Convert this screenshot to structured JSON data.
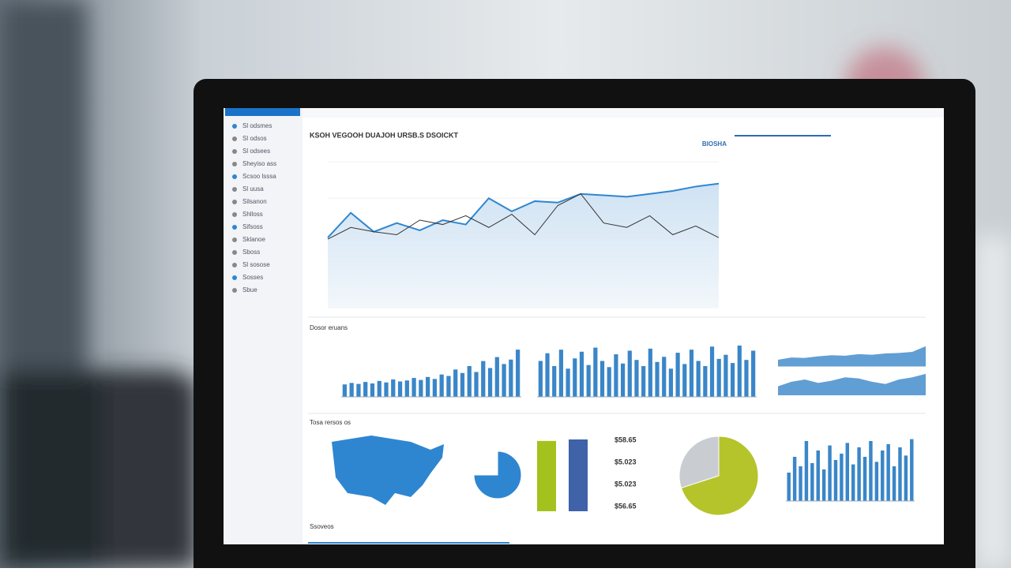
{
  "header": {
    "title": "KSOH VEGOOH DUAJOH URSB.S DSOICKT",
    "brand": "BIOSHA"
  },
  "sidebar": {
    "items": [
      "Sl odsmes",
      "Sl odsos",
      "Sl odsees",
      "Sheyiso ass",
      "Scsoo lsssa",
      "Sl uusa",
      "Silsanon",
      "Shlloss",
      "Sifsoss",
      "Sklanoe",
      "Sboss",
      "Sl sosose",
      "Sosses",
      "Sbue"
    ]
  },
  "panels": {
    "titles": [
      "Dosor eruans",
      "Tosa rersos os",
      "Ssoveos"
    ]
  },
  "kpis": [
    "$58.65",
    "$5.023",
    "$5.023",
    "$56.65"
  ],
  "charts": [
    {
      "type": "line",
      "ylim": [
        0,
        100
      ],
      "series": [
        {
          "color": "#2f86d0",
          "values": [
            48,
            65,
            52,
            58,
            53,
            60,
            57,
            75,
            66,
            73,
            72,
            78,
            77,
            76,
            78,
            80,
            83,
            85
          ]
        },
        {
          "color": "#333333",
          "values": [
            47,
            55,
            52,
            50,
            60,
            57,
            63,
            55,
            64,
            50,
            70,
            78,
            58,
            55,
            63,
            50,
            56,
            48
          ]
        }
      ]
    },
    {
      "type": "bar",
      "ylim": [
        0,
        100
      ],
      "color": "#3a86c8",
      "values": [
        25,
        28,
        26,
        30,
        27,
        32,
        29,
        35,
        31,
        33,
        38,
        34,
        40,
        36,
        45,
        42,
        55,
        48,
        62,
        50,
        72,
        58,
        80,
        66,
        75,
        95
      ]
    },
    {
      "type": "bar",
      "ylim": [
        0,
        100
      ],
      "color": "#3a86c8",
      "values": [
        70,
        85,
        60,
        92,
        55,
        75,
        88,
        62,
        96,
        70,
        58,
        83,
        65,
        90,
        72,
        60,
        94,
        68,
        78,
        55,
        86,
        64,
        92,
        70,
        60,
        98,
        74,
        82,
        66,
        100,
        72,
        90
      ]
    },
    {
      "type": "bar",
      "ylim": [
        0,
        100
      ],
      "color": "#3a86c8",
      "values": [
        45,
        70,
        55,
        95,
        60,
        80,
        50,
        88,
        65,
        75,
        92,
        58,
        85,
        70,
        95,
        62,
        80,
        90,
        55,
        85,
        72,
        98
      ]
    },
    {
      "type": "area",
      "ylim": [
        0,
        100
      ],
      "series": [
        {
          "color": "#3a86c8",
          "values": [
            30,
            40,
            38,
            45,
            50,
            48,
            55,
            52,
            58,
            60,
            65,
            90
          ]
        },
        {
          "color": "#3a86c8",
          "values": [
            40,
            60,
            70,
            55,
            65,
            80,
            75,
            60,
            50,
            70,
            80,
            95
          ]
        }
      ]
    },
    {
      "type": "pie",
      "values": [
        75,
        25
      ],
      "colors": [
        "#2f86d0",
        "#ffffff"
      ]
    },
    {
      "type": "pie",
      "values": [
        70,
        30
      ],
      "colors": [
        "#b5c42a",
        "#c9cdd2"
      ]
    },
    {
      "type": "vbar",
      "ylim": [
        0,
        100
      ],
      "values": [
        95,
        97
      ],
      "colors": [
        "#a4c21e",
        "#3f62a8"
      ]
    }
  ]
}
